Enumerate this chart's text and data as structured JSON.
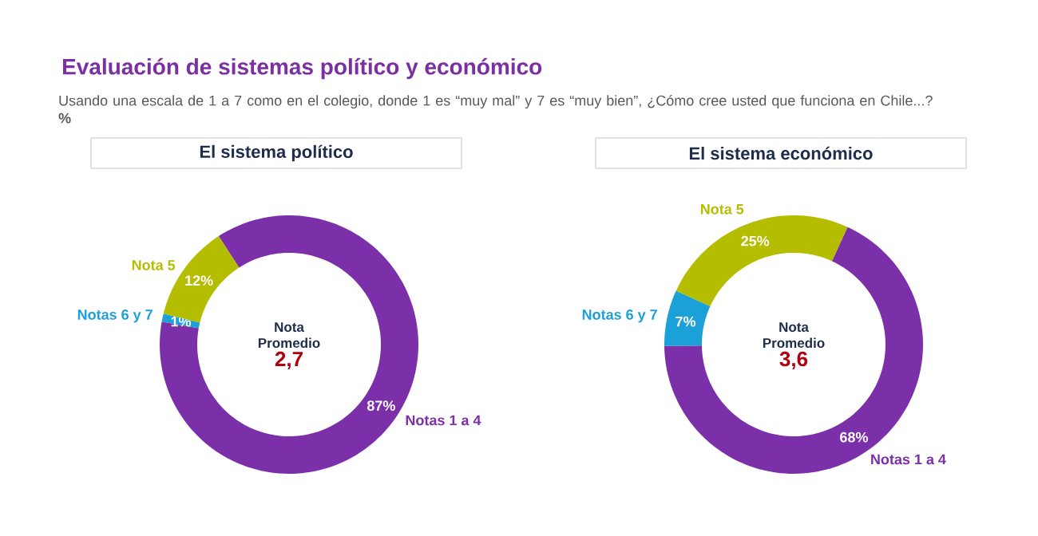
{
  "chart_data": [
    {
      "type": "other",
      "title": "Evaluación de sistemas político y económico",
      "subtitle": "Usando una escala de 1 a 7 como en el colegio, donde 1 es “muy mal” y 7 es “muy bien”, ¿Cómo cree usted que funciona en Chile...? **%**"
    },
    {
      "type": "donut",
      "title": "El sistema político",
      "categories": [
        "Notas 1 a 4",
        "Notas 6 y 7",
        "Nota 5"
      ],
      "values": [
        87,
        1,
        12
      ],
      "value_labels": [
        "87%",
        "1%",
        "12%"
      ],
      "colors": [
        "#7b2fa8",
        "#1ba1d8",
        "#b5bd00"
      ],
      "annotations": [
        "Nota Promedio",
        "2,7"
      ]
    },
    {
      "type": "donut",
      "title": "El sistema económico",
      "categories": [
        "Notas 1 a 4",
        "Notas 6 y 7",
        "Nota 5"
      ],
      "values": [
        68,
        7,
        25
      ],
      "value_labels": [
        "68%",
        "7%",
        "25%"
      ],
      "colors": [
        "#7b2fa8",
        "#1ba1d8",
        "#b5bd00"
      ],
      "annotations": [
        "Nota Promedio",
        "3,6"
      ]
    }
  ]
}
